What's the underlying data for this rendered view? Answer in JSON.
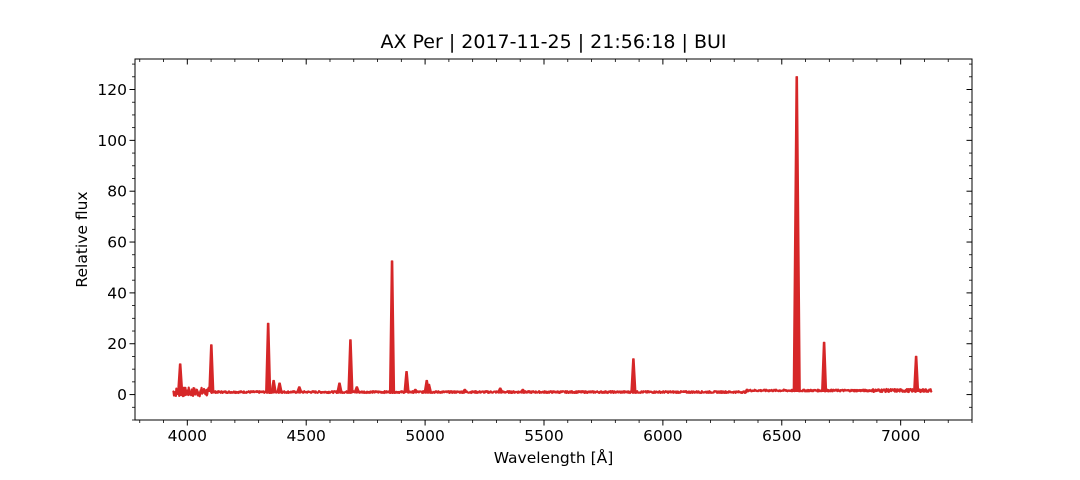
{
  "chart_data": {
    "type": "line",
    "title": "AX Per | 2017-11-25 | 21:56:18 | BUI",
    "xlabel": "Wavelength [Å]",
    "ylabel": "Relative flux",
    "xlim": [
      3780,
      7300
    ],
    "ylim": [
      -10,
      132
    ],
    "x_ticks": [
      4000,
      4500,
      5000,
      5500,
      6000,
      6500,
      7000
    ],
    "y_ticks": [
      0,
      20,
      40,
      60,
      80,
      100,
      120
    ],
    "x_minor_step": 100,
    "y_minor_step": 5,
    "grid": false,
    "legend": "none",
    "series": [
      {
        "color": "#d62728",
        "continuum": 1.0,
        "x_range": [
          3940,
          7130
        ],
        "lines": [
          {
            "x": 3970,
            "y": 12.0
          },
          {
            "x": 4101,
            "y": 19.5
          },
          {
            "x": 4340,
            "y": 28.0
          },
          {
            "x": 4363,
            "y": 5.5
          },
          {
            "x": 4388,
            "y": 4.5
          },
          {
            "x": 4471,
            "y": 3.0
          },
          {
            "x": 4640,
            "y": 4.5
          },
          {
            "x": 4686,
            "y": 21.5
          },
          {
            "x": 4713,
            "y": 3.0
          },
          {
            "x": 4861,
            "y": 52.5
          },
          {
            "x": 4922,
            "y": 9.0
          },
          {
            "x": 4959,
            "y": 2.0
          },
          {
            "x": 5007,
            "y": 5.5
          },
          {
            "x": 5016,
            "y": 4.0
          },
          {
            "x": 5167,
            "y": 2.0
          },
          {
            "x": 5316,
            "y": 2.5
          },
          {
            "x": 5411,
            "y": 2.0
          },
          {
            "x": 5876,
            "y": 14.0
          },
          {
            "x": 6563,
            "y": 125.0
          },
          {
            "x": 6678,
            "y": 20.5
          },
          {
            "x": 7065,
            "y": 15.0
          }
        ]
      }
    ]
  }
}
